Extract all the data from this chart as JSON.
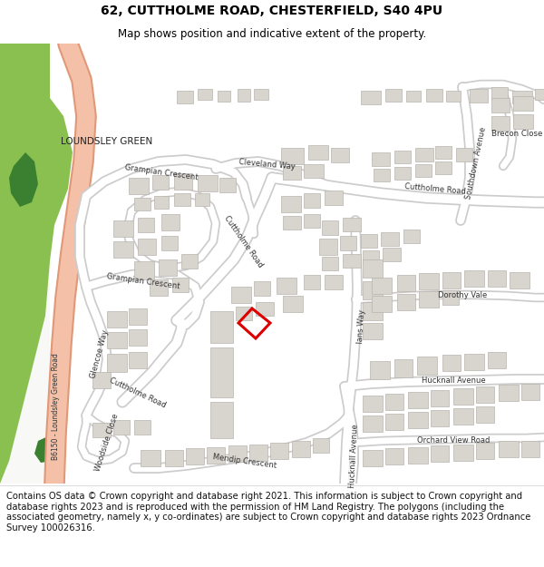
{
  "title_line1": "62, CUTTHOLME ROAD, CHESTERFIELD, S40 4PU",
  "title_line2": "Map shows position and indicative extent of the property.",
  "footer_text": "Contains OS data © Crown copyright and database right 2021. This information is subject to Crown copyright and database rights 2023 and is reproduced with the permission of HM Land Registry. The polygons (including the associated geometry, namely x, y co-ordinates) are subject to Crown copyright and database rights 2023 Ordnance Survey 100026316.",
  "road_color": "#ffffff",
  "road_border_color": "#cccccc",
  "building_color": "#d8d4ce",
  "building_border_color": "#b8b4ae",
  "highlight_color": "#dd0000",
  "green_color": "#8ac050",
  "green_dark_color": "#3a8030",
  "road_a_color": "#f5c0a8",
  "road_a_border": "#e09878",
  "map_bg": "#f8f8f6",
  "title_fontsize": 10,
  "subtitle_fontsize": 8.5,
  "footer_fontsize": 7.2,
  "fig_width": 6.0,
  "fig_height": 6.25
}
